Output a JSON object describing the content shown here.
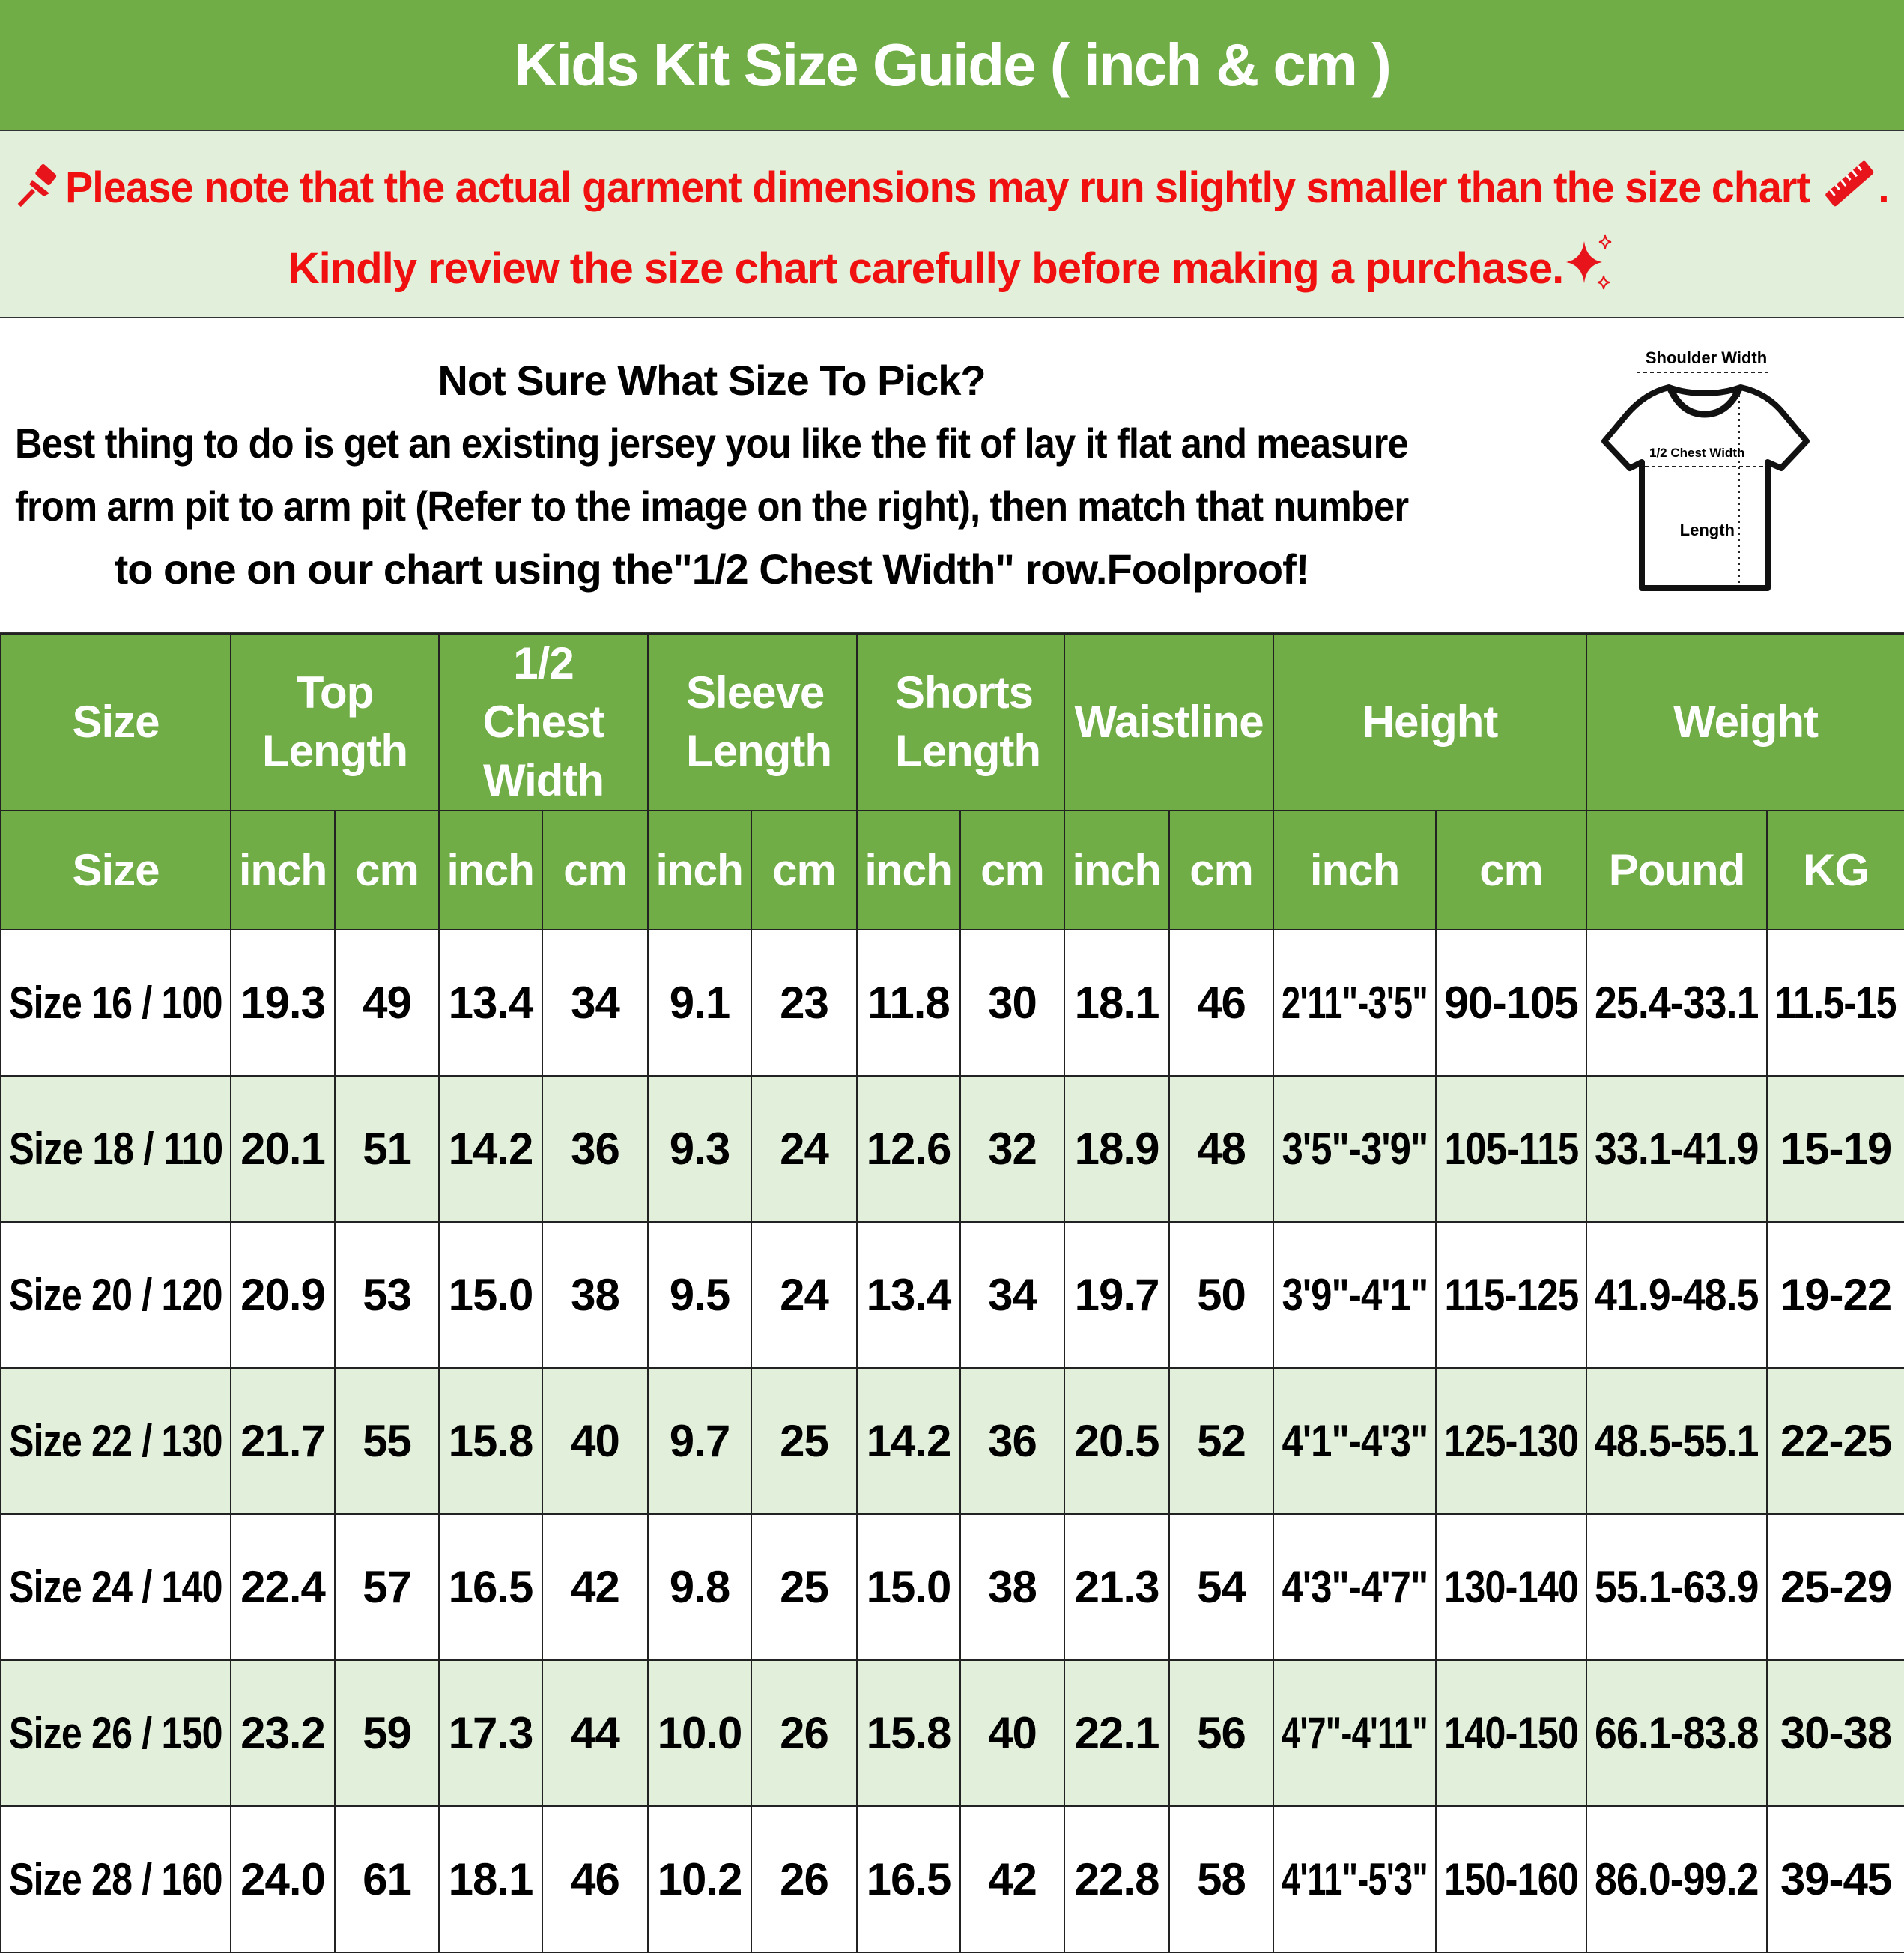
{
  "title": "Kids Kit Size Guide ( inch & cm )",
  "notice": {
    "line1": "Please note that the actual garment dimensions may run slightly smaller than the size chart",
    "line1_end": ".",
    "line2": "Kindly review the size chart carefully before making a purchase.",
    "icons": [
      "pushpin-icon",
      "ruler-icon",
      "sparkles-icon"
    ],
    "color": "#f01010"
  },
  "info": {
    "heading": "Not Sure What Size To Pick?",
    "line1": "Best thing to do is get an existing jersey you like the fit of lay it flat and measure",
    "line2": "from arm pit to arm pit (Refer to the image on the right), then match that number",
    "line3": "to one on our chart using the\"1/2 Chest Width\" row.Foolproof!",
    "diagram": {
      "shoulder_label": "Shoulder Width",
      "chest_label": "1/2 Chest Width",
      "length_label": "Length"
    }
  },
  "colors": {
    "header": "#70AD47",
    "alt_row": "#E2EFDA"
  },
  "table": {
    "group_headers": [
      "Size",
      "Top Length",
      "1/2 Chest Width",
      "Sleeve Length",
      "Shorts Length",
      "Waistline",
      "Height",
      "Weight"
    ],
    "unit_headers": [
      "Size",
      "inch",
      "cm",
      "inch",
      "cm",
      "inch",
      "cm",
      "inch",
      "cm",
      "inch",
      "cm",
      "inch",
      "cm",
      "Pound",
      "KG"
    ],
    "rows": [
      [
        "Size 16 / 100",
        "19.3",
        "49",
        "13.4",
        "34",
        "9.1",
        "23",
        "11.8",
        "30",
        "18.1",
        "46",
        "2'11\"-3'5\"",
        "90-105",
        "25.4-33.1",
        "11.5-15"
      ],
      [
        "Size 18 / 110",
        "20.1",
        "51",
        "14.2",
        "36",
        "9.3",
        "24",
        "12.6",
        "32",
        "18.9",
        "48",
        "3'5\"-3'9\"",
        "105-115",
        "33.1-41.9",
        "15-19"
      ],
      [
        "Size 20 / 120",
        "20.9",
        "53",
        "15.0",
        "38",
        "9.5",
        "24",
        "13.4",
        "34",
        "19.7",
        "50",
        "3'9\"-4'1\"",
        "115-125",
        "41.9-48.5",
        "19-22"
      ],
      [
        "Size 22 / 130",
        "21.7",
        "55",
        "15.8",
        "40",
        "9.7",
        "25",
        "14.2",
        "36",
        "20.5",
        "52",
        "4'1\"-4'3\"",
        "125-130",
        "48.5-55.1",
        "22-25"
      ],
      [
        "Size 24 / 140",
        "22.4",
        "57",
        "16.5",
        "42",
        "9.8",
        "25",
        "15.0",
        "38",
        "21.3",
        "54",
        "4'3\"-4'7\"",
        "130-140",
        "55.1-63.9",
        "25-29"
      ],
      [
        "Size 26 / 150",
        "23.2",
        "59",
        "17.3",
        "44",
        "10.0",
        "26",
        "15.8",
        "40",
        "22.1",
        "56",
        "4'7\"-4'11\"",
        "140-150",
        "66.1-83.8",
        "30-38"
      ],
      [
        "Size 28 / 160",
        "24.0",
        "61",
        "18.1",
        "46",
        "10.2",
        "26",
        "16.5",
        "42",
        "22.8",
        "58",
        "4'11\"-5'3\"",
        "150-160",
        "86.0-99.2",
        "39-45"
      ]
    ]
  }
}
